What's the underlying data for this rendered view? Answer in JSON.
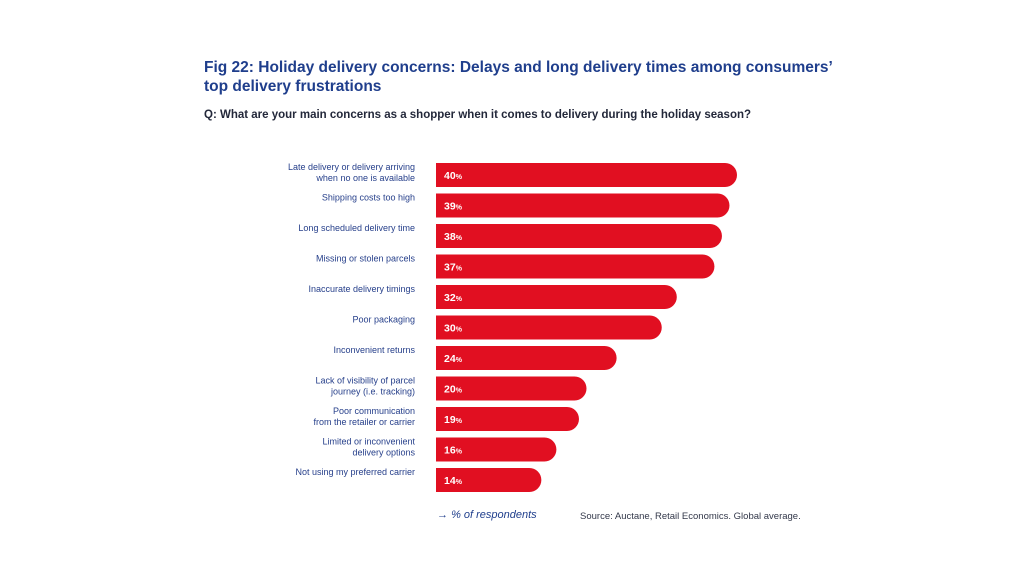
{
  "header": {
    "title_line1": "Fig 22: Holiday delivery concerns: Delays and long delivery times among consumers’",
    "title_line2": "top delivery frustrations",
    "question": "Q: What are your main concerns as a shopper when it comes to delivery during the holiday season?"
  },
  "footer": {
    "arrow_icon": "→",
    "unit_label": "% of respondents",
    "source": "Source: Auctane, Retail Economics. Global average."
  },
  "colors": {
    "bar": "#e10f21",
    "title": "#1f3e8c",
    "label": "#27408b"
  },
  "chart_data": {
    "type": "bar",
    "orientation": "horizontal",
    "title": "Fig 22: Holiday delivery concerns: Delays and long delivery times among consumers’ top delivery frustrations",
    "subtitle": "Q: What are your main concerns as a shopper when it comes to delivery during the holiday season?",
    "xlabel": "% of respondents",
    "ylabel": "",
    "xlim": [
      0,
      40
    ],
    "grid": false,
    "legend": "none",
    "value_suffix": "%",
    "categories": [
      [
        "Late delivery or delivery arriving",
        "when no one is available"
      ],
      [
        "Shipping costs too high"
      ],
      [
        "Long scheduled delivery time"
      ],
      [
        "Missing or stolen parcels"
      ],
      [
        "Inaccurate delivery timings"
      ],
      [
        "Poor packaging"
      ],
      [
        "Inconvenient returns"
      ],
      [
        "Lack of visibility of parcel",
        "journey (i.e. tracking)"
      ],
      [
        "Poor communication",
        "from the retailer or carrier"
      ],
      [
        "Limited or inconvenient",
        "delivery options"
      ],
      [
        "Not using my preferred carrier"
      ]
    ],
    "values": [
      40,
      39,
      38,
      37,
      32,
      30,
      24,
      20,
      19,
      16,
      14
    ]
  }
}
